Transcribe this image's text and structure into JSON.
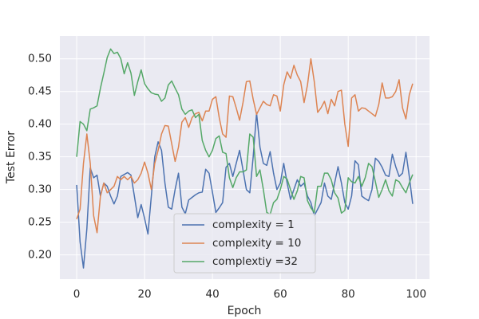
{
  "chart_data": {
    "type": "line",
    "xlabel": "Epoch",
    "ylabel": "Test Error",
    "x": [
      0,
      1,
      2,
      3,
      4,
      5,
      6,
      7,
      8,
      9,
      10,
      11,
      12,
      13,
      14,
      15,
      16,
      17,
      18,
      19,
      20,
      21,
      22,
      23,
      24,
      25,
      26,
      27,
      28,
      29,
      30,
      31,
      32,
      33,
      34,
      35,
      36,
      37,
      38,
      39,
      40,
      41,
      42,
      43,
      44,
      45,
      46,
      47,
      48,
      49,
      50,
      51,
      52,
      53,
      54,
      55,
      56,
      57,
      58,
      59,
      60,
      61,
      62,
      63,
      64,
      65,
      66,
      67,
      68,
      69,
      70,
      71,
      72,
      73,
      74,
      75,
      76,
      77,
      78,
      79,
      80,
      81,
      82,
      83,
      84,
      85,
      86,
      87,
      88,
      89,
      90,
      91,
      92,
      93,
      94,
      95,
      96,
      97,
      98,
      99
    ],
    "series": [
      {
        "name": "complexity = 1",
        "color": "#4c72b0",
        "values": [
          0.307,
          0.22,
          0.18,
          0.24,
          0.333,
          0.318,
          0.322,
          0.29,
          0.31,
          0.305,
          0.29,
          0.278,
          0.29,
          0.32,
          0.323,
          0.326,
          0.322,
          0.29,
          0.257,
          0.277,
          0.256,
          0.232,
          0.29,
          0.35,
          0.373,
          0.36,
          0.31,
          0.273,
          0.27,
          0.3,
          0.325,
          0.273,
          0.263,
          0.284,
          0.288,
          0.292,
          0.295,
          0.296,
          0.331,
          0.325,
          0.296,
          0.265,
          0.272,
          0.28,
          0.334,
          0.34,
          0.32,
          0.34,
          0.36,
          0.33,
          0.3,
          0.295,
          0.35,
          0.417,
          0.365,
          0.34,
          0.337,
          0.358,
          0.325,
          0.3,
          0.31,
          0.34,
          0.31,
          0.285,
          0.3,
          0.315,
          0.305,
          0.31,
          0.29,
          0.28,
          0.26,
          0.27,
          0.28,
          0.31,
          0.29,
          0.285,
          0.31,
          0.335,
          0.31,
          0.28,
          0.27,
          0.29,
          0.344,
          0.338,
          0.29,
          0.286,
          0.283,
          0.3,
          0.348,
          0.343,
          0.334,
          0.322,
          0.32,
          0.354,
          0.335,
          0.32,
          0.325,
          0.357,
          0.32,
          0.278
        ]
      },
      {
        "name": "complexity = 10",
        "color": "#dd8452",
        "values": [
          0.255,
          0.27,
          0.34,
          0.385,
          0.34,
          0.26,
          0.234,
          0.29,
          0.31,
          0.295,
          0.3,
          0.305,
          0.32,
          0.315,
          0.32,
          0.315,
          0.32,
          0.31,
          0.315,
          0.325,
          0.342,
          0.325,
          0.3,
          0.34,
          0.36,
          0.385,
          0.398,
          0.397,
          0.37,
          0.343,
          0.365,
          0.403,
          0.41,
          0.395,
          0.41,
          0.416,
          0.418,
          0.405,
          0.42,
          0.42,
          0.438,
          0.442,
          0.41,
          0.385,
          0.38,
          0.443,
          0.442,
          0.425,
          0.406,
          0.433,
          0.465,
          0.466,
          0.438,
          0.415,
          0.425,
          0.435,
          0.43,
          0.428,
          0.445,
          0.443,
          0.42,
          0.46,
          0.48,
          0.47,
          0.49,
          0.475,
          0.465,
          0.433,
          0.46,
          0.5,
          0.465,
          0.418,
          0.425,
          0.435,
          0.416,
          0.438,
          0.428,
          0.45,
          0.452,
          0.4,
          0.366,
          0.44,
          0.445,
          0.42,
          0.425,
          0.424,
          0.42,
          0.416,
          0.412,
          0.43,
          0.463,
          0.44,
          0.44,
          0.442,
          0.45,
          0.468,
          0.425,
          0.408,
          0.445,
          0.462
        ]
      },
      {
        "name": "complextiy =32",
        "color": "#55a868",
        "values": [
          0.35,
          0.404,
          0.4,
          0.39,
          0.423,
          0.425,
          0.428,
          0.455,
          0.478,
          0.502,
          0.515,
          0.508,
          0.51,
          0.5,
          0.477,
          0.494,
          0.478,
          0.444,
          0.465,
          0.483,
          0.462,
          0.454,
          0.448,
          0.446,
          0.445,
          0.435,
          0.44,
          0.46,
          0.466,
          0.455,
          0.445,
          0.423,
          0.415,
          0.42,
          0.422,
          0.41,
          0.415,
          0.375,
          0.36,
          0.35,
          0.36,
          0.378,
          0.382,
          0.357,
          0.355,
          0.318,
          0.303,
          0.318,
          0.327,
          0.327,
          0.33,
          0.385,
          0.38,
          0.32,
          0.33,
          0.3,
          0.265,
          0.262,
          0.28,
          0.285,
          0.3,
          0.32,
          0.316,
          0.3,
          0.285,
          0.298,
          0.32,
          0.318,
          0.283,
          0.272,
          0.265,
          0.305,
          0.305,
          0.325,
          0.325,
          0.315,
          0.295,
          0.287,
          0.264,
          0.268,
          0.318,
          0.312,
          0.31,
          0.32,
          0.305,
          0.318,
          0.34,
          0.335,
          0.312,
          0.288,
          0.3,
          0.315,
          0.298,
          0.29,
          0.315,
          0.312,
          0.303,
          0.295,
          0.31,
          0.323
        ]
      }
    ],
    "xlim": [
      -4.95,
      103.95
    ],
    "xticks": [
      0,
      20,
      40,
      60,
      80,
      100
    ],
    "ylim": [
      0.163,
      0.535
    ],
    "yticks": [
      {
        "value": 0.2,
        "label": "0.20"
      },
      0.25,
      {
        "value": 0.3,
        "label": "0.30"
      },
      0.35,
      {
        "value": 0.4,
        "label": "0.40"
      },
      0.45,
      {
        "value": 0.5,
        "label": "0.50"
      }
    ],
    "grid": true,
    "legend": "lower center"
  }
}
